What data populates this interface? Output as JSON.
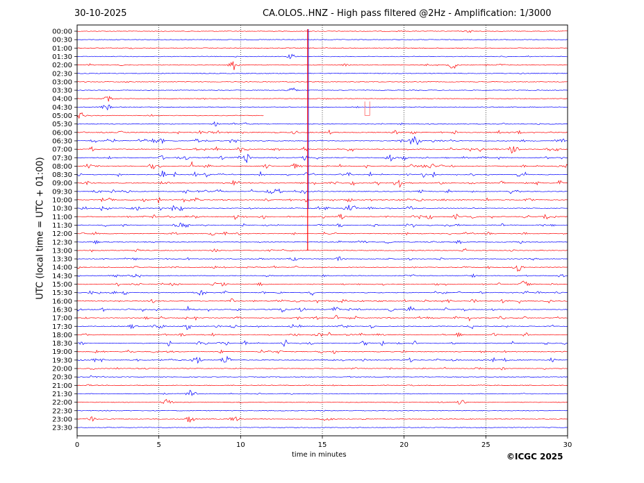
{
  "header": {
    "date": "30-10-2025",
    "title": "CA.OLOS..HNZ - High pass filtered @2Hz - Amplification: 1/3000"
  },
  "footer": {
    "copyright": "©ICGC 2025"
  },
  "colors": {
    "trace_a": "#ff0000",
    "trace_b": "#0000ff",
    "grid": "#000000"
  },
  "chart_data": {
    "type": "line",
    "title": "CA.OLOS..HNZ - High pass filtered @2Hz - Amplification: 1/3000",
    "xlabel": "time in minutes",
    "ylabel": "UTC (local time = UTC + 01:00)",
    "xlim": [
      0,
      30
    ],
    "x_ticks": [
      "0",
      "5",
      "10",
      "15",
      "20",
      "25",
      "30"
    ],
    "grid": "vertical dotted lines at 5-minute intervals",
    "row_labels": [
      "00:00",
      "00:30",
      "01:00",
      "01:30",
      "02:00",
      "02:30",
      "03:00",
      "03:30",
      "04:00",
      "04:30",
      "05:00",
      "05:30",
      "06:00",
      "06:30",
      "07:00",
      "07:30",
      "08:00",
      "08:30",
      "09:00",
      "09:30",
      "10:00",
      "10:30",
      "11:00",
      "11:30",
      "12:00",
      "12:30",
      "13:00",
      "13:30",
      "14:00",
      "14:30",
      "15:00",
      "15:30",
      "16:00",
      "16:30",
      "17:00",
      "17:30",
      "18:00",
      "18:30",
      "19:00",
      "19:30",
      "20:00",
      "20:30",
      "21:00",
      "21:30",
      "22:00",
      "22:30",
      "23:00",
      "23:30"
    ],
    "row_colors": "alternating red and blue per 30-minute trace",
    "activity": [
      0.05,
      0.05,
      0.05,
      0.08,
      0.25,
      0.05,
      0.05,
      0.08,
      0.1,
      0.08,
      0.15,
      0.3,
      0.6,
      0.65,
      0.75,
      0.7,
      0.75,
      0.8,
      0.8,
      0.75,
      0.75,
      0.7,
      0.7,
      0.6,
      0.55,
      0.45,
      0.35,
      0.45,
      0.45,
      0.5,
      0.55,
      0.6,
      0.7,
      0.75,
      0.65,
      0.6,
      0.6,
      0.65,
      0.6,
      0.6,
      0.4,
      0.3,
      0.1,
      0.15,
      0.12,
      0.05,
      0.15,
      0.05
    ],
    "events": [
      {
        "row": 0,
        "x": 24.0,
        "amp": 0.3
      },
      {
        "row": 3,
        "x": 13.1,
        "amp": 0.6
      },
      {
        "row": 4,
        "x": 9.6,
        "amp": 1.6
      },
      {
        "row": 4,
        "x": 23.0,
        "amp": 1.0
      },
      {
        "row": 7,
        "x": 13.1,
        "amp": 0.9
      },
      {
        "row": 8,
        "x": 1.9,
        "amp": 0.8
      },
      {
        "row": 9,
        "x": 1.8,
        "amp": 0.9
      },
      {
        "row": 10,
        "x": 0.2,
        "amp": 0.9
      },
      {
        "row": 13,
        "x": 20.6,
        "amp": 1.5
      },
      {
        "row": 14,
        "x": 26.7,
        "amp": 1.4
      },
      {
        "row": 15,
        "x": 19.2,
        "amp": 1.2
      },
      {
        "row": 18,
        "x": 19.7,
        "amp": 1.4
      },
      {
        "row": 28,
        "x": 27.0,
        "amp": 1.3
      },
      {
        "row": 30,
        "x": 27.4,
        "amp": 1.2
      },
      {
        "row": 39,
        "x": 7.3,
        "amp": 1.2
      },
      {
        "row": 39,
        "x": 9.1,
        "amp": 1.3
      },
      {
        "row": 43,
        "x": 7.0,
        "amp": 1.4
      },
      {
        "row": 44,
        "x": 5.5,
        "amp": 1.1
      },
      {
        "row": 44,
        "x": 23.5,
        "amp": 0.9
      },
      {
        "row": 46,
        "x": 6.9,
        "amp": 1.1
      },
      {
        "row": 46,
        "x": 9.6,
        "amp": 0.9
      },
      {
        "row": 46,
        "x": 15.3,
        "amp": 0.6
      },
      {
        "row": 46,
        "x": 0.8,
        "amp": 0.7
      }
    ],
    "spike": {
      "x": 14.1,
      "from_row": 0,
      "to_row": 26
    },
    "gap": {
      "from_row": 10,
      "x_from": 11.4,
      "x_to": 30.0
    }
  }
}
